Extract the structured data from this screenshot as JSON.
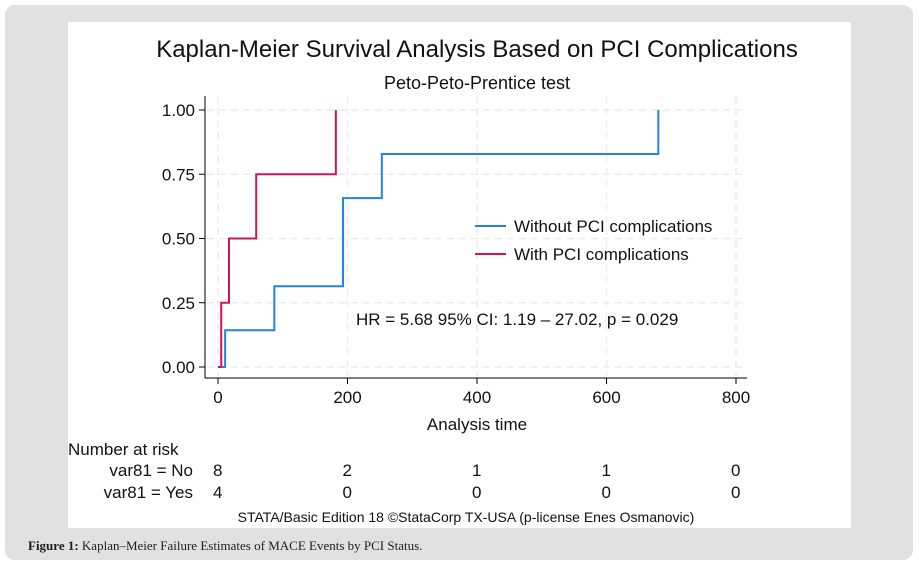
{
  "chart_data": {
    "type": "line",
    "subtype": "step",
    "title": "Kaplan-Meier Survival Analysis Based on PCI Complications",
    "subtitle": "Peto-Peto-Prentice test",
    "xlabel": "Analysis time",
    "ylabel": "",
    "xlim": [
      0,
      800
    ],
    "ylim": [
      0,
      1
    ],
    "x_ticks": [
      0,
      200,
      400,
      600,
      800
    ],
    "x_tick_labels": [
      "0",
      "200",
      "400",
      "600",
      "800"
    ],
    "y_ticks": [
      0,
      0.25,
      0.5,
      0.75,
      1.0
    ],
    "y_tick_labels": [
      "0.00",
      "0.25",
      "0.50",
      "0.75",
      "1.00"
    ],
    "grid": true,
    "legend_position": "center-right",
    "series": [
      {
        "name": "Without PCI complications",
        "color": "#2183e6",
        "x": [
          0,
          11,
          87,
          193,
          253,
          680
        ],
        "y": [
          0,
          0.143,
          0.314,
          0.657,
          0.829,
          1.0
        ]
      },
      {
        "name": "With PCI complications",
        "color": "#d0145a",
        "x": [
          0,
          5,
          17,
          59,
          182
        ],
        "y": [
          0,
          0.25,
          0.5,
          0.75,
          1.0
        ]
      }
    ],
    "annotation": "HR = 5.68  95% CI: 1.19 – 27.02, p = 0.029",
    "risk_table": {
      "title": "Number at risk",
      "times": [
        0,
        200,
        400,
        600,
        800
      ],
      "rows": [
        {
          "label": "var81 = No",
          "values": [
            "8",
            "2",
            "1",
            "1",
            "0"
          ]
        },
        {
          "label": "var81 = Yes",
          "values": [
            "4",
            "0",
            "0",
            "0",
            "0"
          ]
        }
      ]
    },
    "credit": "STATA/Basic Edition 18 ©StataCorp TX-USA (p-license Enes Osmanovic)"
  },
  "caption": {
    "label": "Figure 1:",
    "text": " Kaplan–Meier Failure Estimates of MACE Events by PCI Status."
  }
}
